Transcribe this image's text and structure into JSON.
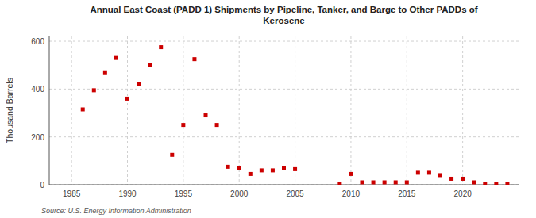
{
  "chart_data": {
    "type": "scatter",
    "title": "Annual East Coast (PADD 1) Shipments by Pipeline, Tanker, and Barge to Other PADDs of\nKerosene",
    "ylabel": "Thousand Barrels",
    "annotations": [
      "Source: U.S. Energy Information Administration"
    ],
    "x": [
      1986,
      1987,
      1988,
      1989,
      1990,
      1991,
      1992,
      1993,
      1994,
      1995,
      1996,
      1997,
      1998,
      1999,
      2000,
      2001,
      2002,
      2003,
      2004,
      2005,
      2009,
      2010,
      2011,
      2012,
      2013,
      2014,
      2015,
      2016,
      2017,
      2018,
      2019,
      2020,
      2021,
      2022,
      2023,
      2024
    ],
    "values": [
      315,
      395,
      470,
      530,
      360,
      420,
      500,
      575,
      125,
      250,
      525,
      290,
      250,
      75,
      70,
      45,
      60,
      60,
      70,
      65,
      5,
      45,
      10,
      10,
      10,
      10,
      10,
      50,
      50,
      40,
      25,
      25,
      10,
      5,
      5,
      5
    ],
    "color": "#cc0000",
    "marker": "square",
    "xlim": [
      1983,
      2025
    ],
    "ylim": [
      0,
      620
    ],
    "xticks": [
      1985,
      1990,
      1995,
      2000,
      2005,
      2010,
      2015,
      2020
    ],
    "yticks": [
      0,
      200,
      400,
      600
    ],
    "grid": true
  }
}
